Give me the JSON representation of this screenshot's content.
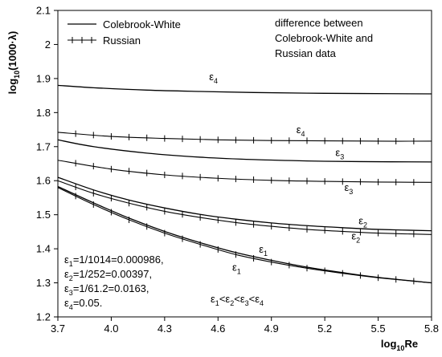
{
  "chart_data": {
    "type": "line",
    "title": "",
    "xlabel": "log",
    "xlabel_sub": "10",
    "xlabel_tail": "Re",
    "ylabel": "log",
    "ylabel_sub": "10",
    "ylabel_tail": "(1000·λ)",
    "xlim": [
      3.7,
      5.8
    ],
    "ylim": [
      1.2,
      2.1
    ],
    "xticks": [
      "3.7",
      "4.0",
      "4.3",
      "4.6",
      "4.9",
      "5.2",
      "5.5",
      "5.8"
    ],
    "yticks": [
      "1.2",
      "1.3",
      "1.4",
      "1.5",
      "1.6",
      "1.7",
      "1.8",
      "1.9",
      "2",
      "2.1"
    ],
    "grid": false,
    "legend": {
      "position": "top-left",
      "entries": [
        "Colebrook-White",
        "Russian"
      ]
    },
    "note_lines": [
      "difference between",
      "Colebrook-White and",
      "Russian data"
    ],
    "eps_defs": [
      {
        "lead": "ε",
        "sub": "1",
        "rest": "=1/1014=0.000986,"
      },
      {
        "lead": "ε",
        "sub": "2",
        "rest": "=1/252=0.00397,"
      },
      {
        "lead": "ε",
        "sub": "3",
        "rest": "=1/61.2=0.0163,"
      },
      {
        "lead": "ε",
        "sub": "4",
        "rest": "=0.05."
      }
    ],
    "inequality": [
      {
        "lead": "ε",
        "sub": "1",
        "rest": "<"
      },
      {
        "lead": "ε",
        "sub": "2",
        "rest": "<"
      },
      {
        "lead": "ε",
        "sub": "3",
        "rest": "<"
      },
      {
        "lead": "ε",
        "sub": "4",
        "rest": ""
      }
    ],
    "series": [
      {
        "name": "Colebrook-White",
        "curve": "ε4",
        "x": [
          3.7,
          3.9,
          4.2,
          4.5,
          4.8,
          5.1,
          5.4,
          5.8
        ],
        "y": [
          1.88,
          1.873,
          1.866,
          1.862,
          1.859,
          1.857,
          1.856,
          1.855
        ]
      },
      {
        "name": "Russian",
        "curve": "ε4",
        "x": [
          3.7,
          4.0,
          4.3,
          4.6,
          4.9,
          5.2,
          5.5,
          5.8
        ],
        "y": [
          1.742,
          1.73,
          1.724,
          1.72,
          1.718,
          1.717,
          1.716,
          1.716
        ]
      },
      {
        "name": "Colebrook-White",
        "curve": "ε3",
        "x": [
          3.7,
          3.9,
          4.2,
          4.5,
          4.8,
          5.1,
          5.4,
          5.8
        ],
        "y": [
          1.72,
          1.7,
          1.681,
          1.669,
          1.662,
          1.658,
          1.656,
          1.655
        ]
      },
      {
        "name": "Russian",
        "curve": "ε3",
        "x": [
          3.7,
          4.0,
          4.3,
          4.6,
          4.9,
          5.2,
          5.5,
          5.8
        ],
        "y": [
          1.66,
          1.634,
          1.617,
          1.607,
          1.601,
          1.598,
          1.596,
          1.595
        ]
      },
      {
        "name": "Colebrook-White",
        "curve": "ε2",
        "x": [
          3.7,
          3.9,
          4.1,
          4.3,
          4.5,
          4.7,
          4.9,
          5.1,
          5.3,
          5.5,
          5.8
        ],
        "y": [
          1.61,
          1.573,
          1.543,
          1.52,
          1.501,
          1.487,
          1.476,
          1.468,
          1.462,
          1.457,
          1.453
        ]
      },
      {
        "name": "Russian",
        "curve": "ε2",
        "x": [
          3.7,
          3.9,
          4.1,
          4.3,
          4.5,
          4.7,
          4.9,
          5.1,
          5.3,
          5.5,
          5.8
        ],
        "y": [
          1.6,
          1.563,
          1.534,
          1.51,
          1.492,
          1.477,
          1.466,
          1.457,
          1.451,
          1.446,
          1.442
        ]
      },
      {
        "name": "Colebrook-White",
        "curve": "ε1",
        "x": [
          3.7,
          3.9,
          4.1,
          4.3,
          4.5,
          4.7,
          4.9,
          5.1,
          5.3,
          5.5,
          5.8
        ],
        "y": [
          1.583,
          1.535,
          1.49,
          1.451,
          1.418,
          1.389,
          1.366,
          1.346,
          1.33,
          1.316,
          1.3
        ]
      },
      {
        "name": "Russian",
        "curve": "ε1",
        "x": [
          3.7,
          3.9,
          4.1,
          4.3,
          4.5,
          4.7,
          4.9,
          5.1,
          5.3,
          5.5,
          5.8
        ],
        "y": [
          1.58,
          1.53,
          1.485,
          1.446,
          1.413,
          1.383,
          1.361,
          1.343,
          1.328,
          1.315,
          1.3
        ]
      }
    ],
    "curve_labels": [
      {
        "lead": "ε",
        "sub": "4",
        "x": 4.55,
        "y": 1.895
      },
      {
        "lead": "ε",
        "sub": "4",
        "x": 5.04,
        "y": 1.74
      },
      {
        "lead": "ε",
        "sub": "3",
        "x": 5.26,
        "y": 1.672
      },
      {
        "lead": "ε",
        "sub": "3",
        "x": 5.31,
        "y": 1.57
      },
      {
        "lead": "ε",
        "sub": "2",
        "x": 5.39,
        "y": 1.472
      },
      {
        "lead": "ε",
        "sub": "2",
        "x": 5.35,
        "y": 1.427
      },
      {
        "lead": "ε",
        "sub": "1",
        "x": 4.83,
        "y": 1.388
      },
      {
        "lead": "ε",
        "sub": "1",
        "x": 4.68,
        "y": 1.335
      }
    ]
  }
}
